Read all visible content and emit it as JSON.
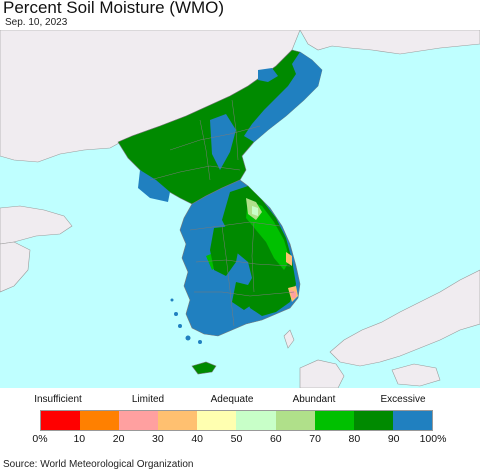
{
  "title": "Percent Soil Moisture (WMO)",
  "date": "Sep. 10, 2023",
  "source": "Source: World Meteorological Organization",
  "legend": {
    "categories": [
      "Insufficient",
      "Limited",
      "Adequate",
      "Abundant",
      "Excessive"
    ],
    "ticks": [
      "0%",
      "10",
      "20",
      "30",
      "40",
      "50",
      "60",
      "70",
      "80",
      "90",
      "100%"
    ],
    "colors": [
      "#ff0000",
      "#ff8000",
      "#ffa0a0",
      "#ffc070",
      "#ffffb0",
      "#c8ffc8",
      "#b0e08a",
      "#00c000",
      "#008a00",
      "#2080c0"
    ]
  },
  "map_colors": {
    "sea": "#bfffff",
    "foreign_land": "#f0ecf0",
    "excessive": "#2080c0",
    "very_high": "#008a00",
    "high": "#00c000",
    "abundant": "#b0e08a",
    "adequate": "#c8ffc8",
    "limited_low": "#ffa0a0",
    "limited": "#ffc070",
    "border": "#808080"
  }
}
